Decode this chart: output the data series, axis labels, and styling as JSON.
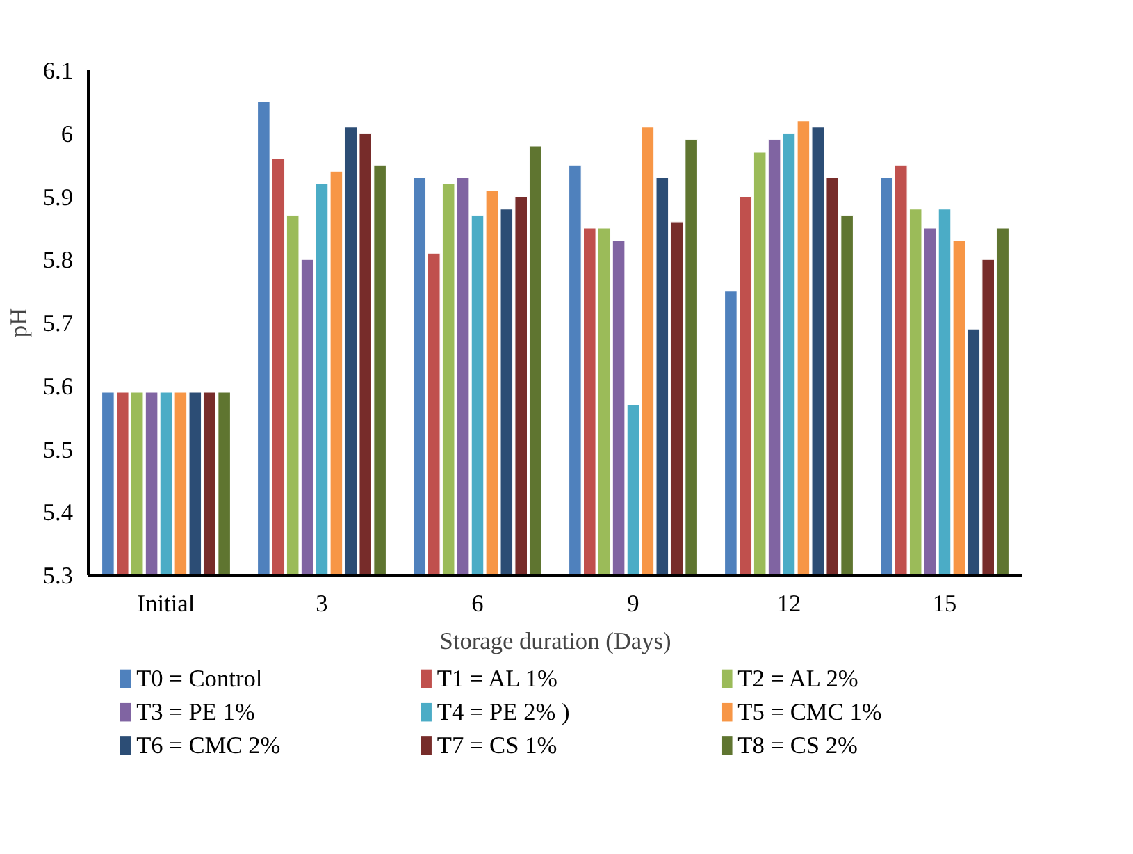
{
  "chart_data": {
    "type": "bar",
    "xlabel": "Storage duration (Days)",
    "ylabel": "pH",
    "categories": [
      "Initial",
      "3",
      "6",
      "9",
      "12",
      "15"
    ],
    "ylim": [
      5.3,
      6.1
    ],
    "yticks": [
      5.3,
      5.4,
      5.5,
      5.6,
      5.7,
      5.8,
      5.9,
      {
        "value": 6,
        "label": "6"
      },
      6.1
    ],
    "grid": false,
    "legend": "bottom",
    "series": [
      {
        "name": "T0 = Control",
        "color": "#4f81bd",
        "values": [
          5.59,
          6.05,
          5.93,
          5.95,
          5.75,
          5.93
        ]
      },
      {
        "name": "T1 = AL 1%",
        "color": "#c0504d",
        "values": [
          5.59,
          5.96,
          5.81,
          5.85,
          5.9,
          5.95
        ]
      },
      {
        "name": "T2 = AL 2%",
        "color": "#9bbb59",
        "values": [
          5.59,
          5.87,
          5.92,
          5.85,
          5.97,
          5.88
        ]
      },
      {
        "name": "T3 = PE 1%",
        "color": "#8064a2",
        "values": [
          5.59,
          5.8,
          5.93,
          5.83,
          5.99,
          5.85
        ]
      },
      {
        "name": "T4 = PE 2% )",
        "color": "#4bacc6",
        "values": [
          5.59,
          5.92,
          5.87,
          5.57,
          6.0,
          5.88
        ]
      },
      {
        "name": "T5 = CMC 1%",
        "color": "#f79646",
        "values": [
          5.59,
          5.94,
          5.91,
          6.01,
          6.02,
          5.83
        ]
      },
      {
        "name": "T6 = CMC 2%",
        "color": "#2c4d75",
        "values": [
          5.59,
          6.01,
          5.88,
          5.93,
          6.01,
          5.69
        ]
      },
      {
        "name": "T7 = CS 1%",
        "color": "#772c2a",
        "values": [
          5.59,
          6.0,
          5.9,
          5.86,
          5.93,
          5.8
        ]
      },
      {
        "name": "T8 = CS 2%",
        "color": "#5f7530",
        "values": [
          5.59,
          5.95,
          5.98,
          5.99,
          5.87,
          5.85
        ]
      }
    ]
  }
}
